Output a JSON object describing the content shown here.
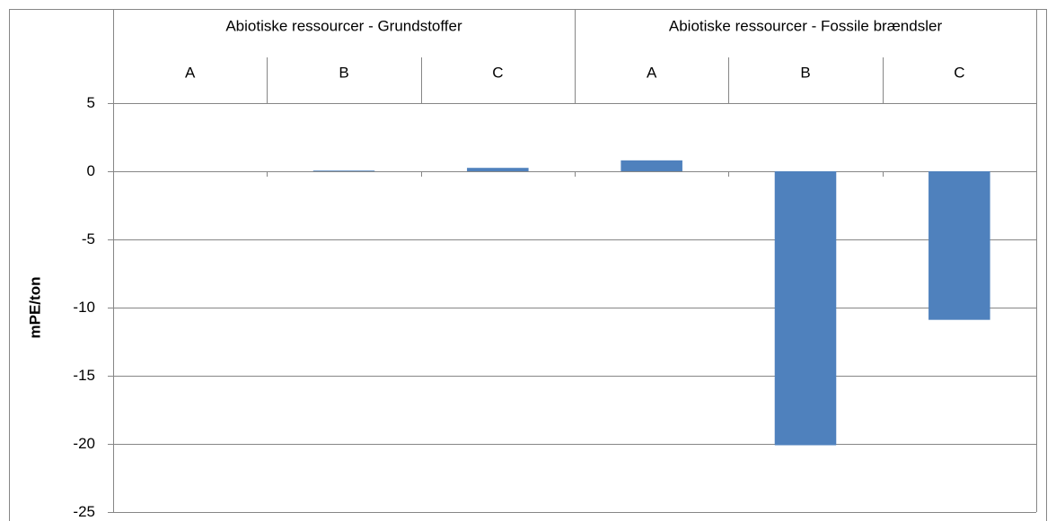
{
  "chart_data": {
    "type": "bar",
    "y_label": "mPE/ton",
    "groups": [
      {
        "label": "Abiotiske ressourcer - Grundstoffer",
        "categories": [
          "A",
          "B",
          "C"
        ]
      },
      {
        "label": "Abiotiske ressourcer - Fossile brændsler",
        "categories": [
          "A",
          "B",
          "C"
        ]
      }
    ],
    "values": [
      0,
      0.05,
      0.25,
      0.8,
      -20.1,
      -10.9
    ],
    "color": "#4f81bd",
    "ylim": [
      -25,
      5
    ],
    "yticks": [
      -25,
      -20,
      -15,
      -10,
      -5,
      0,
      5
    ],
    "grid": true
  }
}
